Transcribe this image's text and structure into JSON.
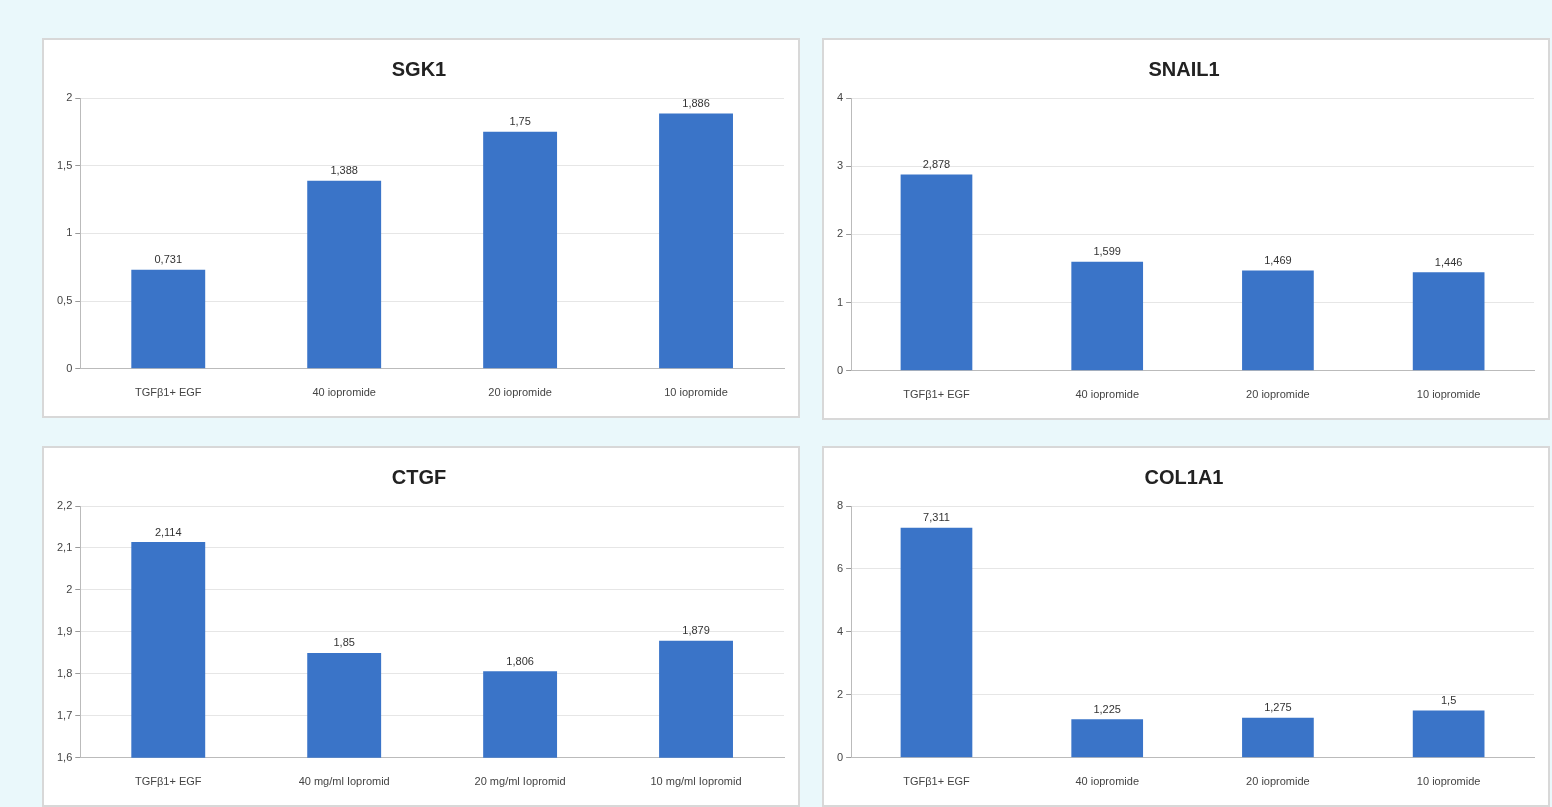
{
  "chart_data": [
    {
      "type": "bar",
      "title": "SGK1",
      "categories": [
        "TGFβ1+ EGF",
        "40 iopromide",
        "20 iopromide",
        "10 iopromide"
      ],
      "values": [
        0.731,
        1.388,
        1.75,
        1.886
      ],
      "value_labels": [
        "0,731",
        "1,388",
        "1,75",
        "1,886"
      ],
      "color": "#3a74c8",
      "ylim": [
        0,
        2
      ],
      "yticks": [
        0,
        {
          "value": 0.5,
          "label": "0,5"
        },
        1,
        {
          "value": 1.5,
          "label": "1,5"
        },
        2
      ],
      "grid": "y"
    },
    {
      "type": "bar",
      "title": "SNAIL1",
      "categories": [
        "TGFβ1+ EGF",
        "40 iopromide",
        "20 iopromide",
        "10 iopromide"
      ],
      "values": [
        2.878,
        1.599,
        1.469,
        1.446
      ],
      "value_labels": [
        "2,878",
        "1,599",
        "1,469",
        "1,446"
      ],
      "color": "#3a74c8",
      "ylim": [
        0,
        4
      ],
      "yticks": [
        0,
        1,
        2,
        3,
        4
      ],
      "grid": "y"
    },
    {
      "type": "bar",
      "title": "CTGF",
      "categories": [
        "TGFβ1+ EGF",
        "40 mg/ml Iopromid",
        "20 mg/ml Iopromid",
        "10 mg/ml Iopromid"
      ],
      "values": [
        2.114,
        1.85,
        1.806,
        1.879
      ],
      "value_labels": [
        "2,114",
        "1,85",
        "1,806",
        "1,879"
      ],
      "color": "#3a74c8",
      "ylim": [
        1.6,
        2.2
      ],
      "yticks": [
        {
          "value": 1.6,
          "label": "1,6"
        },
        {
          "value": 1.7,
          "label": "1,7"
        },
        {
          "value": 1.8,
          "label": "1,8"
        },
        {
          "value": 1.9,
          "label": "1,9"
        },
        2,
        {
          "value": 2.1,
          "label": "2,1"
        },
        {
          "value": 2.2,
          "label": "2,2"
        }
      ],
      "grid": "y"
    },
    {
      "type": "bar",
      "title": "COL1A1",
      "categories": [
        "TGFβ1+ EGF",
        "40 iopromide",
        "20 iopromide",
        "10 iopromide"
      ],
      "values": [
        7.311,
        1.225,
        1.275,
        1.5
      ],
      "value_labels": [
        "7,311",
        "1,225",
        "1,275",
        "1,5"
      ],
      "color": "#3a74c8",
      "ylim": [
        0,
        8
      ],
      "yticks": [
        0,
        2,
        4,
        6,
        8
      ],
      "grid": "y"
    }
  ]
}
